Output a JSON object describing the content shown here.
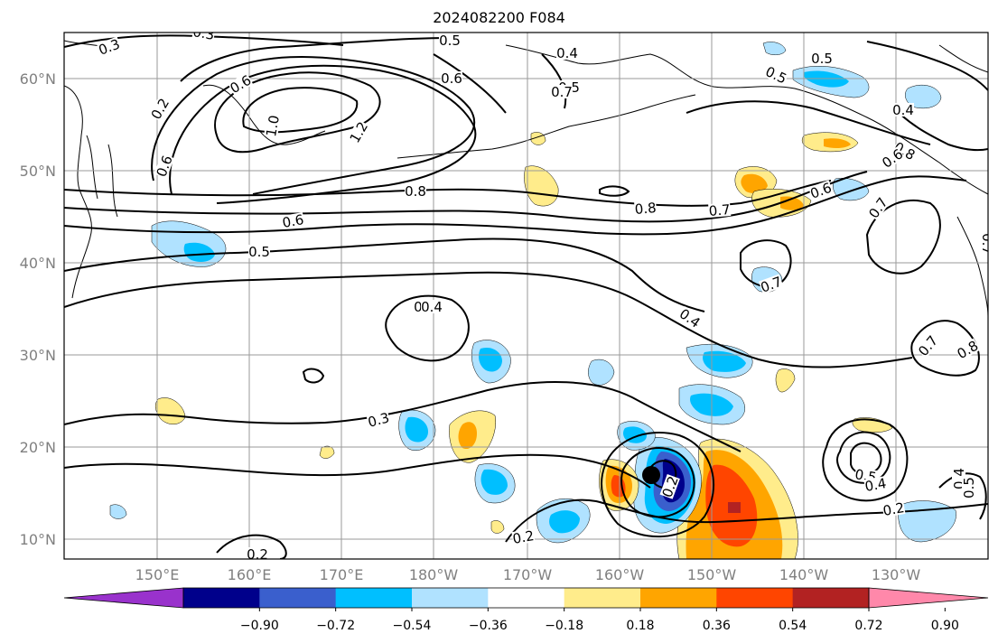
{
  "title": "2024082200 F084",
  "lat_labels": [
    "60°N",
    "50°N",
    "40°N",
    "30°N",
    "20°N",
    "10°N"
  ],
  "lon_labels": [
    "150°E",
    "160°E",
    "170°E",
    "180°W",
    "170°W",
    "160°W",
    "150°W",
    "140°W",
    "130°W"
  ],
  "colorbar": {
    "ticks": [
      "−0.90",
      "−0.72",
      "−0.54",
      "−0.36",
      "−0.18",
      "0.18",
      "0.36",
      "0.54",
      "0.72",
      "0.90"
    ],
    "colors": [
      "#9932cc",
      "#00008b",
      "#3a5fcd",
      "#00bfff",
      "#b0e2ff",
      "#ffffff",
      "#ffec8b",
      "#ffa500",
      "#ff4500",
      "#b22222",
      "#ff88aa"
    ]
  },
  "contour_labels": [
    "0.3",
    "0.3",
    "0.5",
    "0.6",
    "0.2",
    "0.6",
    "1.0",
    "1.2",
    "0.4",
    "0.8",
    "0.6",
    "0.5",
    "0.5",
    "0.6",
    "0.8",
    "0.7",
    "0.5",
    "0.7",
    "0.5",
    "0.4",
    "0.6",
    "0.8",
    "0.7",
    "0.6",
    "0.7",
    "0.4",
    "0.4",
    "0.4",
    "0.3",
    "0.2",
    "0.2",
    "0.2",
    "0.5",
    "0.4",
    "0.2",
    "0.4",
    "0.5",
    "0.7",
    "0.8",
    "0.7"
  ],
  "storm_marker": "storm-center"
}
